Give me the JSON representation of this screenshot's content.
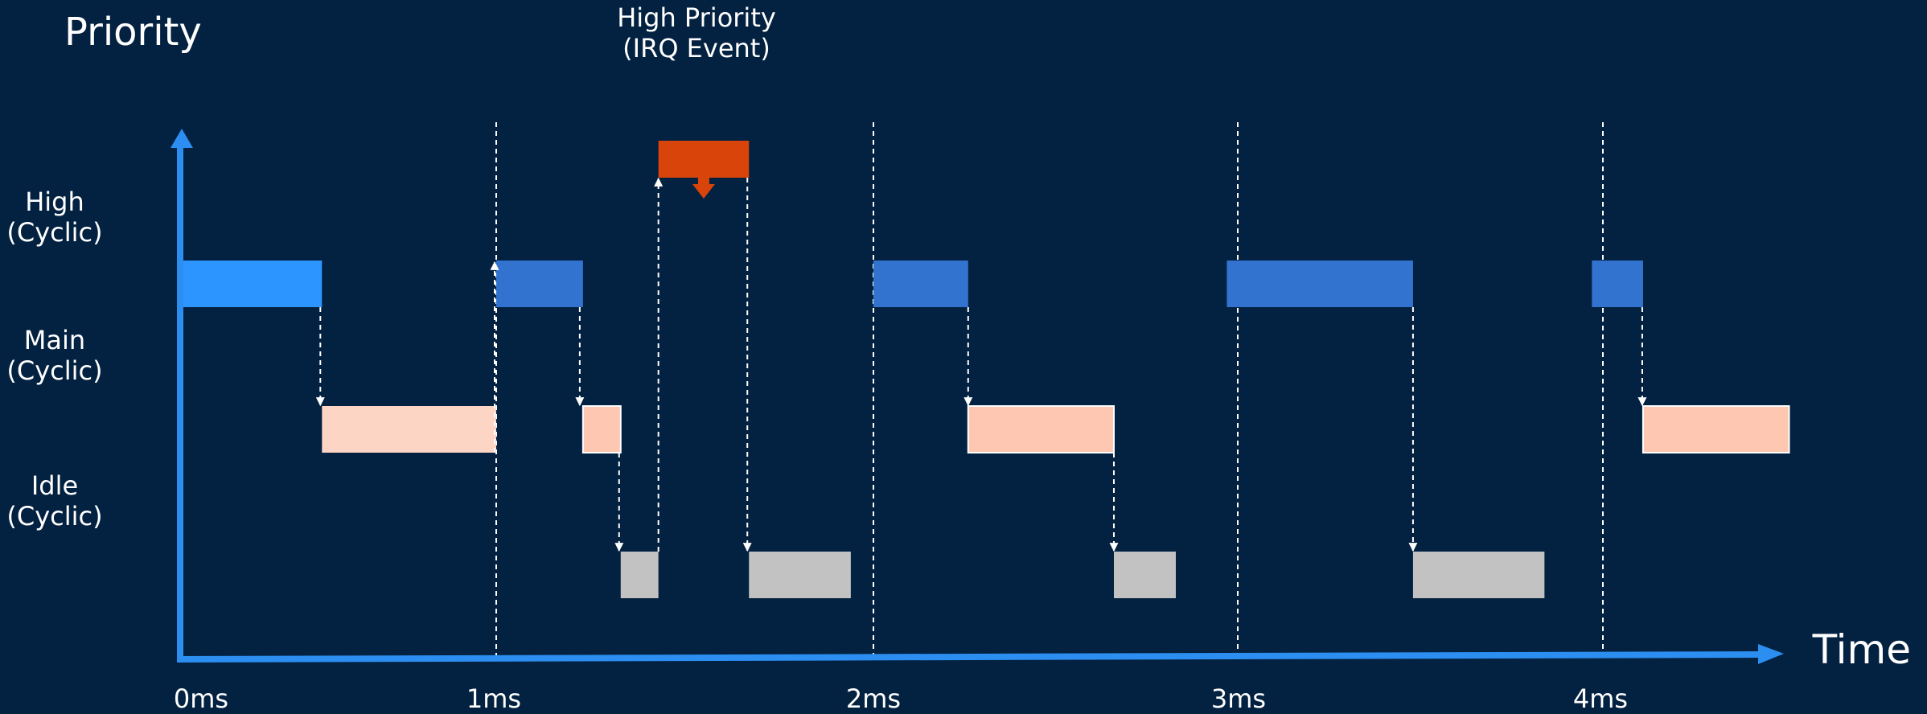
{
  "title": "Priority",
  "axis_x_label": "Time",
  "irq_label": {
    "line1": "High Priority",
    "line2": "(IRQ Event)"
  },
  "rows": [
    {
      "line1": "High",
      "line2": "(Cyclic)"
    },
    {
      "line1": "Main",
      "line2": "(Cyclic)"
    },
    {
      "line1": "Idle",
      "line2": "(Cyclic)"
    }
  ],
  "ticks": [
    "0ms",
    "1ms",
    "2ms",
    "3ms",
    "4ms"
  ],
  "colors": {
    "background": "#032140",
    "axis": "#2b8ef0",
    "high_first": "#2c95ff",
    "high": "#3273d0",
    "main": "#fec7b1",
    "main_first": "#fdd5c5",
    "idle": "#c2c2c2",
    "irq": "#d9440a"
  },
  "chart_data": {
    "type": "gantt",
    "time_unit": "ms",
    "x_range": [
      0,
      4.5
    ],
    "cycle_markers_ms": [
      1,
      2,
      3,
      4
    ],
    "levels": [
      "High (Cyclic)",
      "Main (Cyclic)",
      "Idle (Cyclic)"
    ],
    "tasks": [
      {
        "level": "High (Cyclic)",
        "start": 0.0,
        "end": 0.45
      },
      {
        "level": "High (Cyclic)",
        "start": 1.0,
        "end": 1.23
      },
      {
        "level": "High (Cyclic)",
        "start": 2.0,
        "end": 2.26
      },
      {
        "level": "High (Cyclic)",
        "start": 2.97,
        "end": 3.48
      },
      {
        "level": "High (Cyclic)",
        "start": 3.97,
        "end": 4.11
      },
      {
        "level": "Main (Cyclic)",
        "start": 0.45,
        "end": 1.0
      },
      {
        "level": "Main (Cyclic)",
        "start": 1.23,
        "end": 1.33
      },
      {
        "level": "Main (Cyclic)",
        "start": 2.26,
        "end": 2.66
      },
      {
        "level": "Main (Cyclic)",
        "start": 4.11,
        "end": 4.51
      },
      {
        "level": "Idle (Cyclic)",
        "start": 1.33,
        "end": 1.43
      },
      {
        "level": "Idle (Cyclic)",
        "start": 1.67,
        "end": 1.94
      },
      {
        "level": "Idle (Cyclic)",
        "start": 2.66,
        "end": 2.83
      },
      {
        "level": "Idle (Cyclic)",
        "start": 3.48,
        "end": 3.84
      }
    ],
    "irq_event": {
      "label": "High Priority (IRQ Event)",
      "start": 1.43,
      "end": 1.67
    }
  }
}
